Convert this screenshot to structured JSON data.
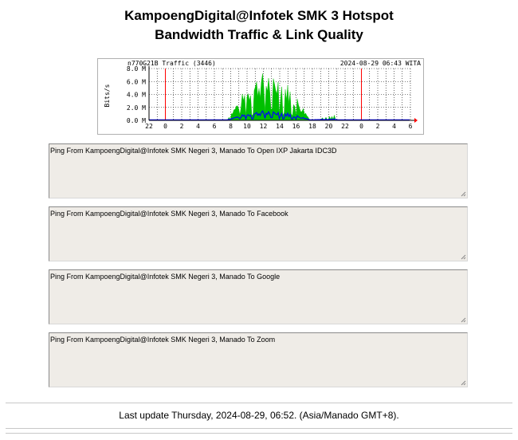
{
  "page": {
    "title_line1": "KampoengDigital@Infotek SMK 3 Hotspot",
    "title_line2": "Bandwidth Traffic & Link Quality"
  },
  "graph": {
    "header_left": "n770G21B Traffic (3446)",
    "header_right": "2024-08-29 06:43 WITA",
    "y_axis_label": "Bits/s",
    "y_ticks": [
      "8.0 M",
      "6.0 M",
      "4.0 M",
      "2.0 M",
      "0.0 M"
    ],
    "x_ticks": [
      "22",
      "0",
      "2",
      "4",
      "6",
      "8",
      "10",
      "12",
      "14",
      "16",
      "18",
      "20",
      "22",
      "0",
      "2",
      "4",
      "6"
    ],
    "colors": {
      "in": "#00c000",
      "out": "#0000ff",
      "midnight": "#ff0000",
      "grid": "#000000"
    }
  },
  "pings": [
    {
      "label": "Ping From KampoengDigital@Infotek SMK Negeri 3, Manado To Open IXP Jakarta IDC3D"
    },
    {
      "label": "Ping From KampoengDigital@Infotek SMK Negeri 3, Manado To Facebook"
    },
    {
      "label": "Ping From KampoengDigital@Infotek SMK Negeri 3, Manado To Google"
    },
    {
      "label": "Ping From KampoengDigital@Infotek SMK Negeri 3, Manado To Zoom"
    }
  ],
  "footer": {
    "last_update": "Last update Thursday, 2024-08-29, 06:52. (Asia/Manado GMT+8)."
  }
}
